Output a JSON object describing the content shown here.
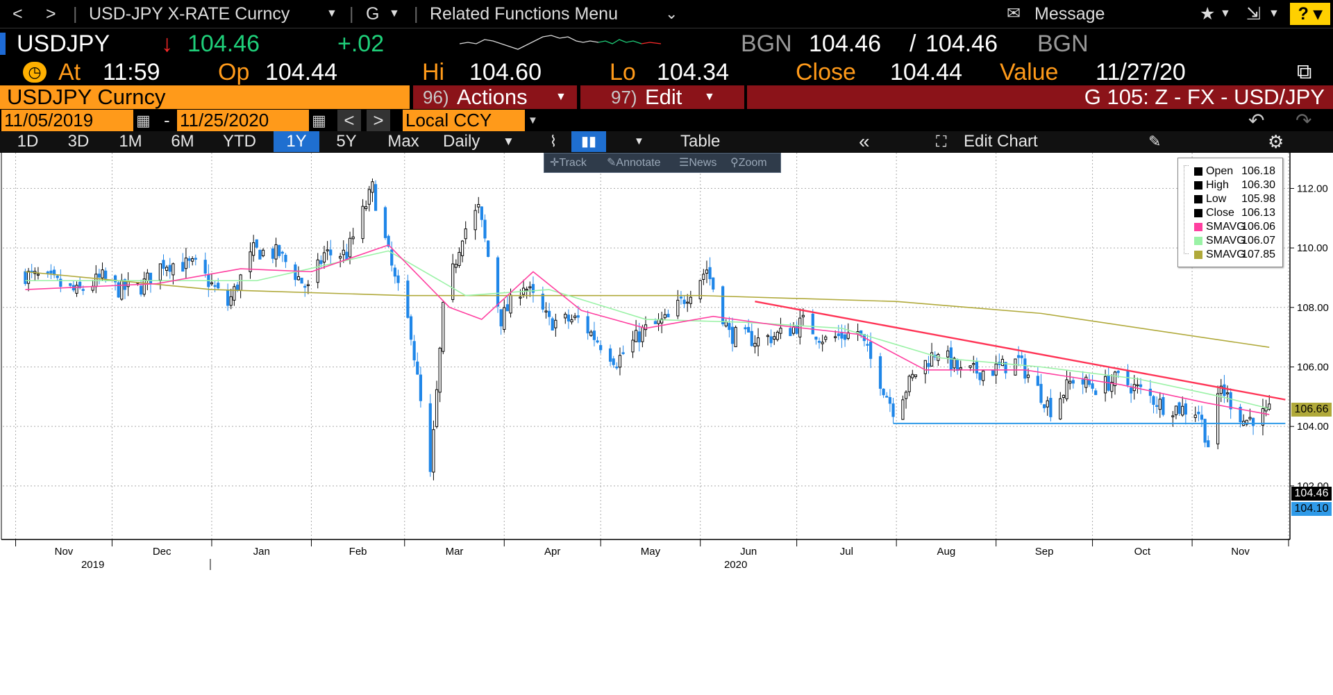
{
  "toolbar": {
    "back": "<",
    "forward": ">",
    "security": "USD-JPY X-RATE Curncy",
    "function": "G",
    "related": "Related Functions Menu",
    "message": "Message",
    "help": "?"
  },
  "quote": {
    "ticker": "USDJPY",
    "last": "104.46",
    "change": "+.02",
    "source1": "BGN",
    "bid": "104.46",
    "slash": "/",
    "ask": "104.46",
    "source2": "BGN",
    "at_label": "At",
    "time": "11:59",
    "open_label": "Op",
    "open": "104.44",
    "high_label": "Hi",
    "high": "104.60",
    "low_label": "Lo",
    "low": "104.34",
    "close_label": "Close",
    "close": "104.44",
    "value_label": "Value",
    "value_date": "11/27/20"
  },
  "menu": {
    "security": "USDJPY Curncy",
    "actions_num": "96)",
    "actions": "Actions",
    "edit_num": "97)",
    "edit": "Edit",
    "title": "G 105: Z - FX - USD/JPY"
  },
  "dates": {
    "start": "11/05/2019",
    "dash": "-",
    "end": "11/25/2020",
    "currency": "Local CCY"
  },
  "periods": [
    "1D",
    "3D",
    "1M",
    "6M",
    "YTD",
    "1Y",
    "5Y",
    "Max"
  ],
  "periodicity": "Daily",
  "table_label": "Table",
  "edit_chart": "Edit Chart",
  "tools": [
    "Track",
    "Annotate",
    "News",
    "Zoom"
  ],
  "legend": [
    {
      "name": "Open",
      "value": "106.18",
      "color": "#000000"
    },
    {
      "name": "High",
      "value": "106.30",
      "color": "#000000"
    },
    {
      "name": "Low",
      "value": "105.98",
      "color": "#000000"
    },
    {
      "name": "Close",
      "value": "106.13",
      "color": "#000000"
    },
    {
      "name": "SMAVG",
      "value": "106.06",
      "color": "#ff3fa0"
    },
    {
      "name": "SMAVG",
      "value": "106.07",
      "color": "#9af2a6"
    },
    {
      "name": "SMAVG",
      "value": "107.85",
      "color": "#b0a93a"
    }
  ],
  "price_tags": [
    {
      "value": "106.66",
      "bg": "#b0a93a",
      "fg": "#000000"
    },
    {
      "value": "104.46",
      "bg": "#000000",
      "fg": "#ffffff"
    },
    {
      "value": "104.10",
      "bg": "#2f9ae8",
      "fg": "#000000"
    }
  ],
  "chart_data": {
    "type": "candlestick",
    "y_ticks": [
      102,
      104,
      106,
      108,
      110,
      112
    ],
    "y_tick_labels": [
      "102.00",
      "104.00",
      "106.00",
      "108.00",
      "110.00",
      "112.00"
    ],
    "ylim": [
      100.2,
      113.2
    ],
    "months": [
      "Nov",
      "Dec",
      "Jan",
      "Feb",
      "Mar",
      "Apr",
      "May",
      "Jun",
      "Jul",
      "Aug",
      "Sep",
      "Oct",
      "Nov"
    ],
    "years": [
      "2019",
      "2020"
    ],
    "grid": true,
    "legend_position": "top-right",
    "close_path": [
      [
        "2019-11-04",
        109.1
      ],
      [
        "2019-11-12",
        108.9
      ],
      [
        "2019-11-20",
        108.5
      ],
      [
        "2019-11-28",
        109.0
      ],
      [
        "2019-12-03",
        108.6
      ],
      [
        "2019-12-10",
        108.7
      ],
      [
        "2019-12-17",
        109.5
      ],
      [
        "2019-12-27",
        109.4
      ],
      [
        "2020-01-06",
        108.1
      ],
      [
        "2020-01-14",
        109.9
      ],
      [
        "2020-01-22",
        109.8
      ],
      [
        "2020-01-31",
        108.6
      ],
      [
        "2020-02-05",
        109.8
      ],
      [
        "2020-02-12",
        109.8
      ],
      [
        "2020-02-20",
        112.0
      ],
      [
        "2020-02-27",
        108.9
      ],
      [
        "2020-03-03",
        107.2
      ],
      [
        "2020-03-09",
        102.3
      ],
      [
        "2020-03-13",
        107.9
      ],
      [
        "2020-03-19",
        110.5
      ],
      [
        "2020-03-24",
        111.3
      ],
      [
        "2020-03-31",
        107.6
      ],
      [
        "2020-04-07",
        108.8
      ],
      [
        "2020-04-15",
        107.5
      ],
      [
        "2020-04-24",
        107.6
      ],
      [
        "2020-05-06",
        106.2
      ],
      [
        "2020-05-14",
        107.2
      ],
      [
        "2020-05-22",
        107.6
      ],
      [
        "2020-06-03",
        109.3
      ],
      [
        "2020-06-10",
        107.1
      ],
      [
        "2020-06-19",
        106.9
      ],
      [
        "2020-06-26",
        107.1
      ],
      [
        "2020-07-03",
        107.5
      ],
      [
        "2020-07-10",
        106.9
      ],
      [
        "2020-07-20",
        107.2
      ],
      [
        "2020-07-31",
        104.6
      ],
      [
        "2020-08-07",
        105.8
      ],
      [
        "2020-08-14",
        106.6
      ],
      [
        "2020-08-21",
        105.8
      ],
      [
        "2020-08-31",
        105.9
      ],
      [
        "2020-09-08",
        106.2
      ],
      [
        "2020-09-18",
        104.6
      ],
      [
        "2020-09-25",
        105.6
      ],
      [
        "2020-10-02",
        105.3
      ],
      [
        "2020-10-09",
        105.6
      ],
      [
        "2020-10-16",
        105.2
      ],
      [
        "2020-10-23",
        104.7
      ],
      [
        "2020-11-03",
        104.5
      ],
      [
        "2020-11-06",
        103.4
      ],
      [
        "2020-11-10",
        105.3
      ],
      [
        "2020-11-17",
        104.2
      ],
      [
        "2020-11-25",
        104.46
      ]
    ],
    "sma_pink": [
      [
        "2019-11-04",
        108.6
      ],
      [
        "2019-12-15",
        108.8
      ],
      [
        "2020-01-10",
        109.3
      ],
      [
        "2020-02-01",
        109.2
      ],
      [
        "2020-02-25",
        110.1
      ],
      [
        "2020-03-15",
        108.0
      ],
      [
        "2020-03-25",
        107.6
      ],
      [
        "2020-04-10",
        109.2
      ],
      [
        "2020-04-25",
        107.9
      ],
      [
        "2020-05-15",
        107.3
      ],
      [
        "2020-06-05",
        107.7
      ],
      [
        "2020-06-25",
        107.4
      ],
      [
        "2020-07-20",
        107.1
      ],
      [
        "2020-08-10",
        105.9
      ],
      [
        "2020-09-10",
        105.9
      ],
      [
        "2020-10-10",
        105.4
      ],
      [
        "2020-11-05",
        104.8
      ],
      [
        "2020-11-25",
        104.4
      ]
    ],
    "sma_green": [
      [
        "2019-11-04",
        108.9
      ],
      [
        "2020-01-15",
        108.9
      ],
      [
        "2020-02-25",
        109.9
      ],
      [
        "2020-03-20",
        108.4
      ],
      [
        "2020-04-15",
        108.6
      ],
      [
        "2020-05-15",
        107.6
      ],
      [
        "2020-06-15",
        107.5
      ],
      [
        "2020-07-15",
        107.3
      ],
      [
        "2020-08-15",
        106.3
      ],
      [
        "2020-09-15",
        106.0
      ],
      [
        "2020-10-15",
        105.6
      ],
      [
        "2020-11-10",
        105.0
      ],
      [
        "2020-11-25",
        104.6
      ]
    ],
    "sma_olive": [
      [
        "2019-11-04",
        109.2
      ],
      [
        "2020-01-01",
        108.6
      ],
      [
        "2020-03-01",
        108.4
      ],
      [
        "2020-06-01",
        108.4
      ],
      [
        "2020-08-01",
        108.2
      ],
      [
        "2020-09-15",
        107.8
      ],
      [
        "2020-11-25",
        106.66
      ]
    ],
    "trend_line": [
      [
        "2020-06-18",
        108.2
      ],
      [
        "2020-11-30",
        104.9
      ]
    ],
    "support_line": [
      [
        "2020-07-31",
        104.1
      ],
      [
        "2020-11-30",
        104.1
      ]
    ]
  }
}
